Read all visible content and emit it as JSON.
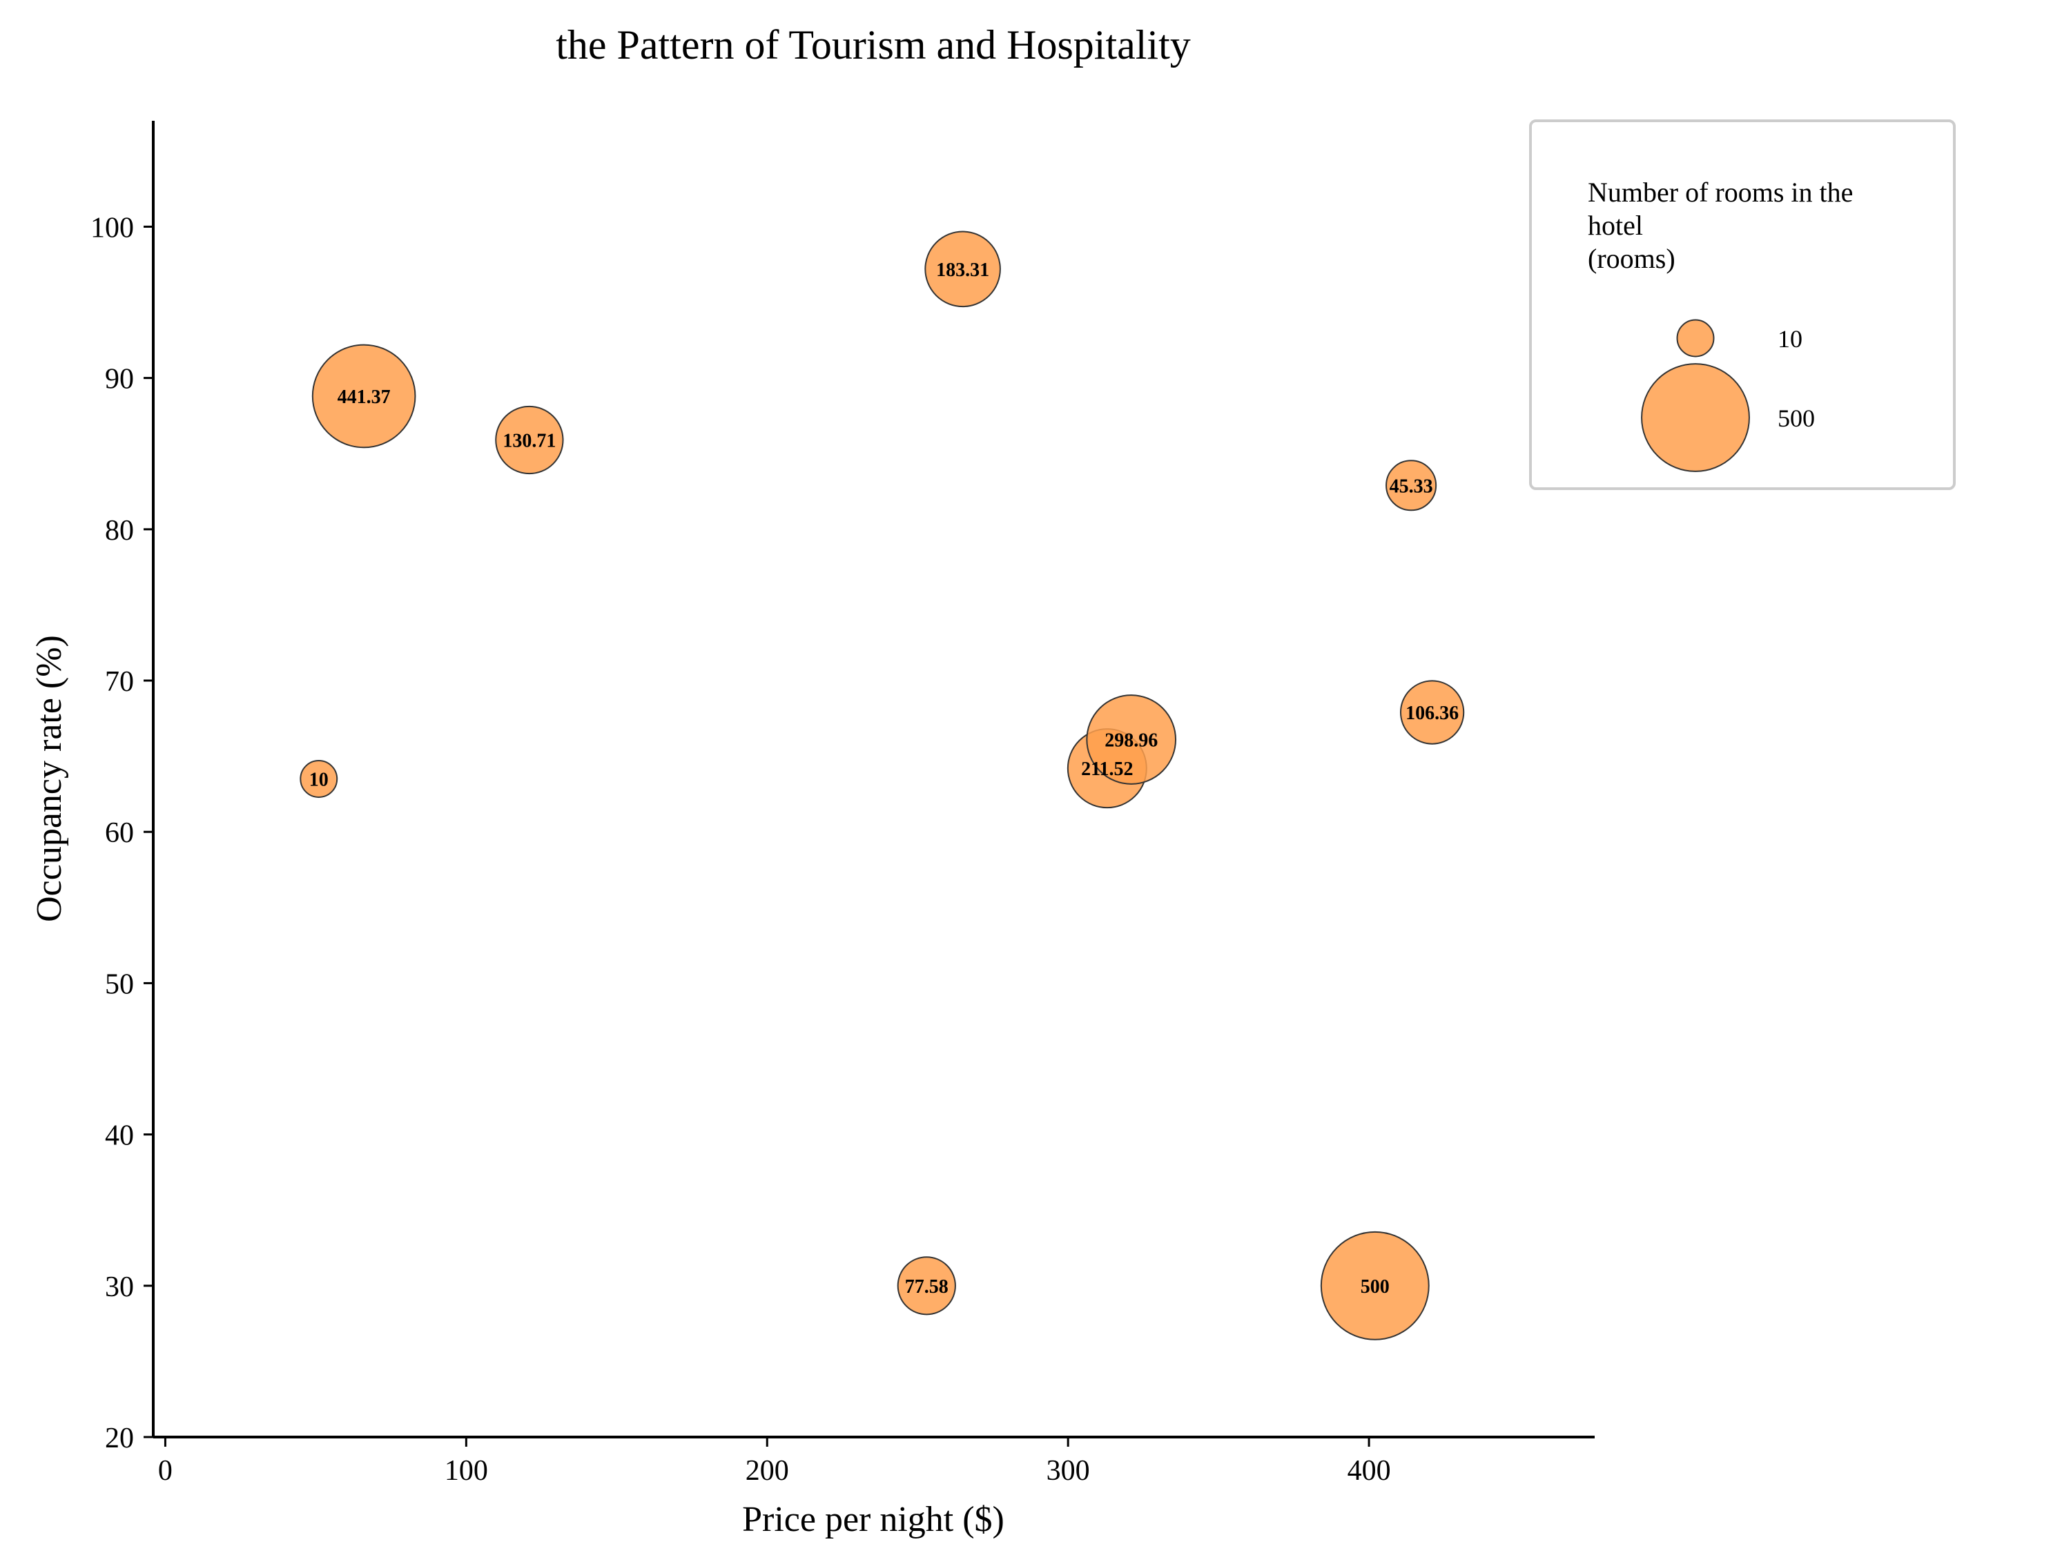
{
  "chart_data": {
    "type": "scatter",
    "title": "the Pattern of Tourism and Hospitality",
    "xlabel": "Price per night ($)",
    "ylabel": "Occupancy rate (%)",
    "xlim": [
      -4,
      475
    ],
    "ylim": [
      20,
      107
    ],
    "xticks": [
      0,
      100,
      200,
      300,
      400
    ],
    "yticks": [
      20,
      30,
      40,
      50,
      60,
      70,
      80,
      90,
      100
    ],
    "grid": false,
    "legend": {
      "title": "Number of rooms in the hotel (rooms)",
      "title_lines": [
        "Number of rooms in the",
        "hotel",
        "(rooms)"
      ],
      "placement": "top-right",
      "entries": [
        {
          "label": "10",
          "size": 10
        },
        {
          "label": "500",
          "size": 500
        }
      ]
    },
    "bubble_color": "#ffa04d",
    "edge_color": "#333333",
    "points": [
      {
        "x": 51,
        "y": 63.5,
        "size": 10,
        "label": "10"
      },
      {
        "x": 66,
        "y": 88.8,
        "size": 441.37,
        "label": "441.37"
      },
      {
        "x": 121,
        "y": 85.9,
        "size": 130.71,
        "label": "130.71"
      },
      {
        "x": 253,
        "y": 30.0,
        "size": 77.58,
        "label": "77.58"
      },
      {
        "x": 265,
        "y": 97.2,
        "size": 183.31,
        "label": "183.31"
      },
      {
        "x": 313,
        "y": 64.2,
        "size": 211.52,
        "label": "211.52"
      },
      {
        "x": 321,
        "y": 66.1,
        "size": 298.96,
        "label": "298.96"
      },
      {
        "x": 402,
        "y": 30.0,
        "size": 500,
        "label": "500"
      },
      {
        "x": 414,
        "y": 82.9,
        "size": 45.33,
        "label": "45.33"
      },
      {
        "x": 421,
        "y": 67.9,
        "size": 106.36,
        "label": "106.36"
      }
    ]
  }
}
